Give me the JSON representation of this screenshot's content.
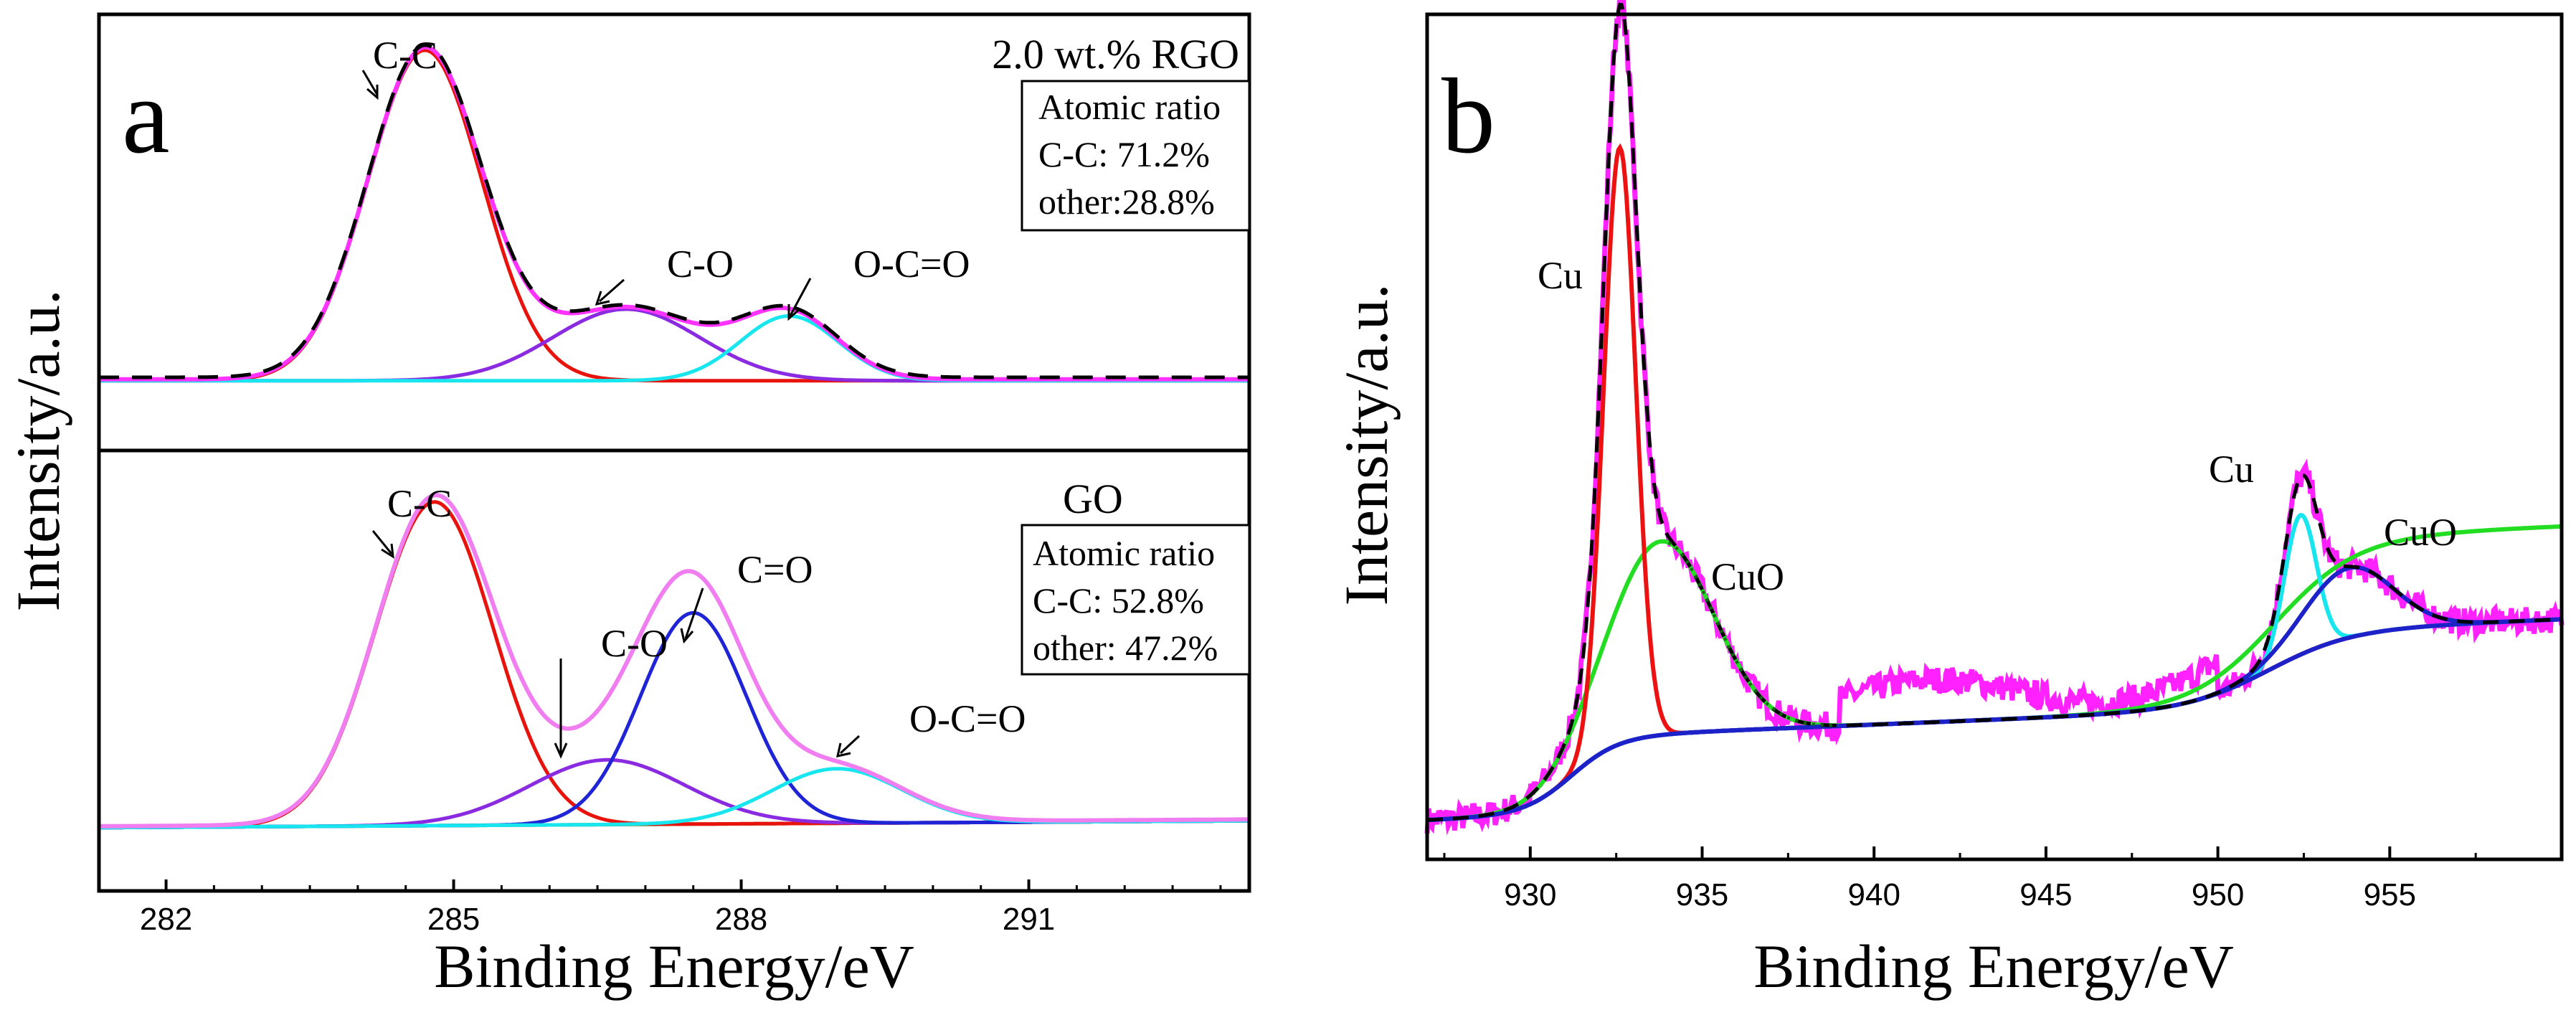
{
  "chart_data": [
    {
      "panel": "a",
      "type": "line",
      "xlabel": "Binding Energy/eV",
      "ylabel": "Intensity/a.u.",
      "xlim": [
        281.3,
        293.3
      ],
      "xticks": [
        282,
        285,
        288,
        291
      ],
      "xtick_labels": [
        "282",
        "285",
        "288",
        "291"
      ],
      "subplots": [
        {
          "sample": "2.0 wt.% RGO",
          "atomic_ratio_title": "Atomic ratio",
          "atomic_ratio_lines": [
            "C-C: 71.2%",
            "other:28.8%"
          ],
          "baseline": 0.03,
          "ylim": [
            0,
            1.1
          ],
          "peaks": [
            {
              "name": "C-C",
              "label": "C-C",
              "center": 284.7,
              "fwhm": 1.4,
              "height": 0.97,
              "color": "#e8130c"
            },
            {
              "name": "C-O",
              "label": "C-O",
              "center": 286.8,
              "fwhm": 1.8,
              "height": 0.21,
              "color": "#8a2be2"
            },
            {
              "name": "O-C=O",
              "label": "O-C=O",
              "center": 288.5,
              "fwhm": 1.2,
              "height": 0.19,
              "color": "#18e6ee"
            }
          ],
          "envelope_color": "#ff33ff",
          "fit_color": "#000000"
        },
        {
          "sample": "GO",
          "atomic_ratio_title": "Atomic ratio",
          "atomic_ratio_lines": [
            "C-C: 52.8%",
            "other: 47.2%"
          ],
          "baseline": 0.05,
          "ylim": [
            0,
            1.1
          ],
          "peaks": [
            {
              "name": "C-C",
              "label": "C-C",
              "center": 284.8,
              "fwhm": 1.45,
              "height": 0.95,
              "color": "#e8130c"
            },
            {
              "name": "C-O",
              "label": "C-O",
              "center": 286.6,
              "fwhm": 1.9,
              "height": 0.19,
              "color": "#8a2be2"
            },
            {
              "name": "C=O",
              "label": "C=O",
              "center": 287.5,
              "fwhm": 1.3,
              "height": 0.62,
              "color": "#1f24d6"
            },
            {
              "name": "O-C=O",
              "label": "O-C=O",
              "center": 289.0,
              "fwhm": 1.6,
              "height": 0.16,
              "color": "#18e6ee"
            }
          ],
          "envelope_color": "#f07ef0",
          "baseline_color": "#7a7a1a"
        }
      ]
    },
    {
      "panel": "b",
      "type": "line",
      "xlabel": "Binding Energy/eV",
      "ylabel": "Intensity/a.u.",
      "xlim": [
        927,
        960
      ],
      "ylim": [
        0,
        1.1
      ],
      "xticks": [
        930,
        935,
        940,
        945,
        950,
        955
      ],
      "xtick_labels": [
        "930",
        "935",
        "940",
        "945",
        "950",
        "955"
      ],
      "series": [
        {
          "name": "Cu",
          "label": "Cu",
          "center": 932.6,
          "fwhm": 1.1,
          "height": 0.77,
          "color": "#ee1111"
        },
        {
          "name": "CuO",
          "label": "CuO",
          "center": 933.8,
          "fwhm": 3.6,
          "height": 0.25,
          "color": "#22dd22"
        },
        {
          "name": "Cu",
          "label": "Cu",
          "center": 952.4,
          "fwhm": 1.1,
          "height": 0.18,
          "color": "#18e6ee"
        },
        {
          "name": "CuO",
          "label": "CuO",
          "center": 953.8,
          "fwhm": 3.0,
          "height": 0.09,
          "color": "#1d22c8"
        }
      ],
      "background": {
        "start": 0.02,
        "step1_center": 931.2,
        "step1_height": 0.1,
        "step2_center": 951.5,
        "step2_height": 0.1,
        "slope": 0.0045,
        "color": "#1d22c8"
      },
      "raw_color": "#ff22ff",
      "fit_color": "#000000"
    }
  ]
}
